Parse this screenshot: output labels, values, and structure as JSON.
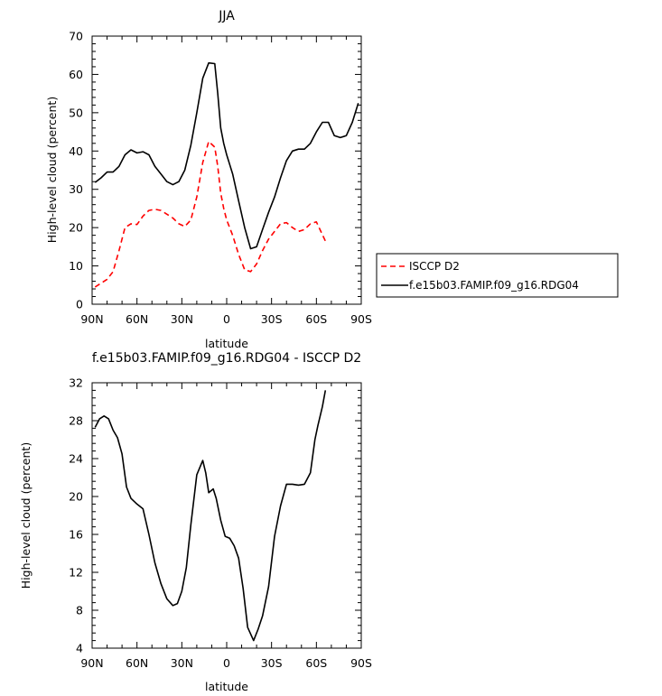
{
  "chart_data": [
    {
      "type": "line",
      "title": "JJA",
      "xlabel": "latitude",
      "ylabel": "High-level cloud (percent)",
      "ylim": [
        0,
        70
      ],
      "xlim": [
        90,
        -90
      ],
      "xticks": [
        90,
        60,
        30,
        0,
        -30,
        -60,
        -90
      ],
      "xtick_labels": [
        "90N",
        "60N",
        "30N",
        "0",
        "30S",
        "60S",
        "90S"
      ],
      "yticks": [
        0,
        10,
        20,
        30,
        40,
        50,
        60,
        70
      ],
      "ytick_labels": [
        "0",
        "10",
        "20",
        "30",
        "40",
        "50",
        "60",
        "70"
      ],
      "legend_position": "outside right",
      "series": [
        {
          "name": "ISCCP D2",
          "color": "#ff0000",
          "dash": "dashed",
          "x": [
            88,
            84,
            80,
            76,
            72,
            68,
            64,
            60,
            56,
            52,
            48,
            44,
            40,
            36,
            32,
            28,
            24,
            20,
            16,
            12,
            8,
            6,
            4,
            2,
            0,
            -4,
            -8,
            -12,
            -16,
            -20,
            -24,
            -28,
            -32,
            -36,
            -40,
            -44,
            -48,
            -52,
            -56,
            -60,
            -63,
            -66
          ],
          "y": [
            4.5,
            5.5,
            6.5,
            8.5,
            14,
            20,
            21,
            20.8,
            23,
            24.5,
            24.8,
            24.5,
            23.5,
            22.5,
            21,
            20.3,
            22,
            28,
            37,
            42.5,
            41,
            36,
            29,
            25,
            22,
            18,
            13,
            9,
            8.5,
            10.5,
            14,
            17,
            19,
            21,
            21.3,
            20,
            19,
            19.5,
            21,
            21.5,
            19,
            16.5
          ]
        },
        {
          "name": "f.e15b03.FAMIP.f09_g16.RDG04",
          "color": "#000000",
          "dash": "solid",
          "x": [
            88,
            84,
            80,
            76,
            72,
            68,
            64,
            60,
            56,
            52,
            48,
            44,
            40,
            36,
            32,
            28,
            24,
            20,
            16,
            12,
            8,
            6,
            4,
            2,
            0,
            -4,
            -8,
            -12,
            -16,
            -20,
            -24,
            -28,
            -32,
            -36,
            -40,
            -44,
            -48,
            -52,
            -56,
            -60,
            -64,
            -68,
            -72,
            -76,
            -80,
            -84,
            -88
          ],
          "y": [
            31.8,
            33,
            34.5,
            34.5,
            36,
            39,
            40.3,
            39.5,
            39.8,
            39,
            36,
            34,
            32,
            31.2,
            32,
            35,
            41.5,
            50,
            59,
            63,
            62.8,
            55,
            46,
            42,
            39,
            34,
            27,
            20,
            14.5,
            15,
            19.5,
            24,
            28,
            33,
            37.5,
            40,
            40.5,
            40.5,
            42,
            45,
            47.5,
            47.5,
            44,
            43.5,
            44,
            47.5,
            52.5
          ]
        }
      ]
    },
    {
      "type": "line",
      "title": "f.e15b03.FAMIP.f09_g16.RDG04 - ISCCP D2",
      "xlabel": "latitude",
      "ylabel": "High-level cloud (percent)",
      "ylim": [
        4,
        32
      ],
      "xlim": [
        90,
        -90
      ],
      "xticks": [
        90,
        60,
        30,
        0,
        -30,
        -60,
        -90
      ],
      "xtick_labels": [
        "90N",
        "60N",
        "30N",
        "0",
        "30S",
        "60S",
        "90S"
      ],
      "yticks": [
        4,
        8,
        12,
        16,
        20,
        24,
        28,
        32
      ],
      "ytick_labels": [
        "4",
        "8",
        "12",
        "16",
        "20",
        "24",
        "28",
        "32"
      ],
      "series": [
        {
          "color": "#000000",
          "dash": "solid",
          "x": [
            88,
            85,
            82,
            79,
            76,
            73,
            70,
            67,
            64,
            60,
            56,
            52,
            48,
            44,
            40,
            36,
            33,
            30,
            27,
            24,
            20,
            16,
            14,
            12,
            9,
            7,
            4,
            1,
            -2,
            -5,
            -8,
            -11,
            -14,
            -18,
            -21,
            -24,
            -28,
            -32,
            -36,
            -40,
            -44,
            -48,
            -52,
            -56,
            -59,
            -61,
            -64,
            -66
          ],
          "y": [
            27.3,
            28.2,
            28.5,
            28.2,
            27,
            26.2,
            24.5,
            21,
            19.8,
            19.2,
            18.7,
            16,
            13,
            10.8,
            9.2,
            8.5,
            8.7,
            10,
            12.5,
            17,
            22.3,
            23.8,
            22.5,
            20.4,
            20.8,
            19.8,
            17.5,
            15.8,
            15.6,
            14.8,
            13.5,
            10.3,
            6.2,
            4.8,
            6,
            7.4,
            10.5,
            15.8,
            19,
            21.3,
            21.3,
            21.2,
            21.3,
            22.5,
            26,
            27.5,
            29.5,
            31.2
          ]
        }
      ]
    }
  ]
}
